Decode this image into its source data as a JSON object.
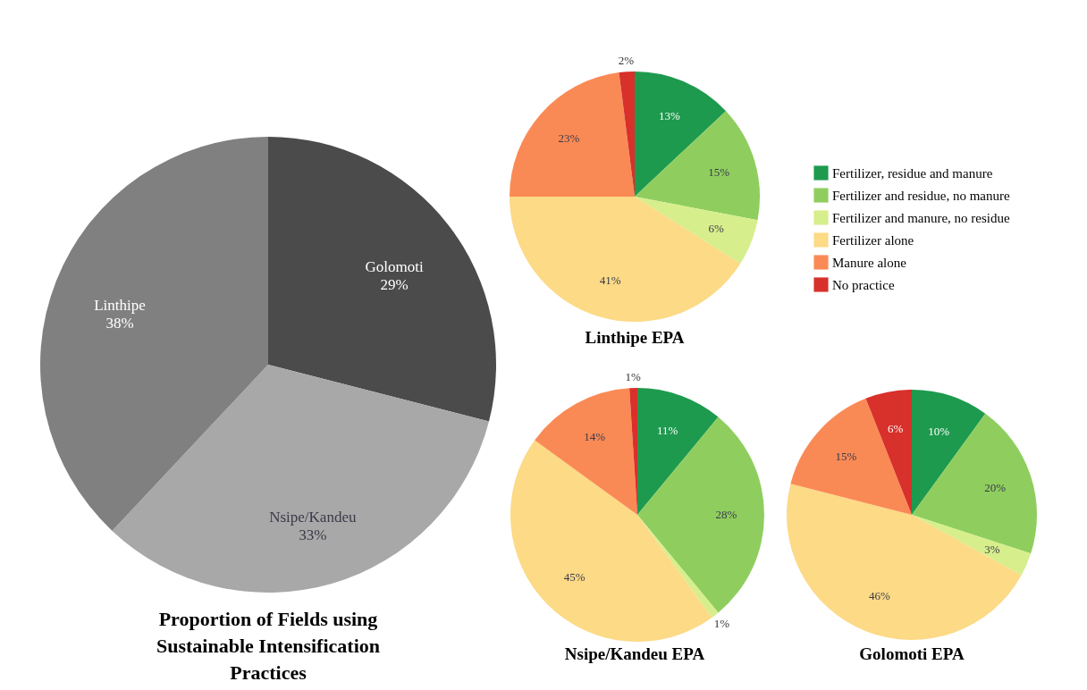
{
  "chart_data": [
    {
      "type": "pie",
      "title": "Proportion of Fields using Sustainable Intensification Practices",
      "categories": [
        "Golomoti",
        "Nsipe/Kandeu",
        "Linthipe"
      ],
      "values": [
        29,
        33,
        38
      ],
      "value_labels": [
        "29%",
        "33%",
        "38%"
      ],
      "colors": [
        "#4b4b4b",
        "#a8a8a8",
        "#808080"
      ],
      "legend": false
    },
    {
      "type": "pie",
      "title": "Linthipe EPA",
      "categories": [
        "Fertilizer, residue and manure",
        "Fertilizer and residue, no manure",
        "Fertilizer and manure, no residue",
        "Fertilizer alone",
        "Manure alone",
        "No practice"
      ],
      "values": [
        13,
        15,
        6,
        41,
        23,
        2
      ],
      "value_labels": [
        "13%",
        "15%",
        "6%",
        "41%",
        "23%",
        "2%"
      ],
      "colors": [
        "#1e9a4e",
        "#8fce5e",
        "#d7ee8c",
        "#fcda86",
        "#fa8a55",
        "#d8302a"
      ],
      "legend": "right"
    },
    {
      "type": "pie",
      "title": "Nsipe/Kandeu EPA",
      "categories": [
        null,
        null,
        null,
        null,
        null,
        null
      ],
      "values": [
        11,
        28,
        1,
        45,
        14,
        1
      ],
      "value_labels": [
        "11%",
        "28%",
        "1%",
        "45%",
        "14%",
        "1%"
      ],
      "colors": [
        "#1e9a4e",
        "#8fce5e",
        "#d7ee8c",
        "#fcda86",
        "#fa8a55",
        "#d8302a"
      ],
      "legend": false
    },
    {
      "type": "pie",
      "title": "Golomoti EPA",
      "categories": [
        null,
        null,
        null,
        null,
        null,
        null
      ],
      "values": [
        10,
        20,
        3,
        46,
        15,
        6
      ],
      "value_labels": [
        "10%",
        "20%",
        "3%",
        "46%",
        "15%",
        "6%"
      ],
      "colors": [
        "#1e9a4e",
        "#8fce5e",
        "#d7ee8c",
        "#fcda86",
        "#fa8a55",
        "#d8302a"
      ],
      "legend": false
    }
  ]
}
